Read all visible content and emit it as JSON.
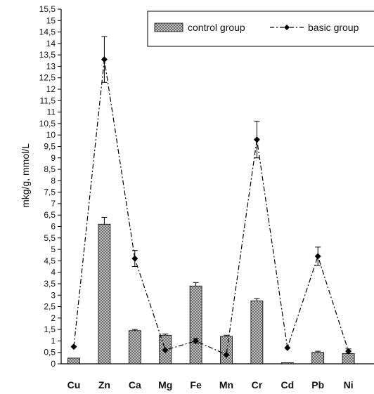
{
  "chart_data": {
    "type": "bar",
    "ylabel": "mkg/g, mmol/L",
    "xlabel": "",
    "ylim": [
      0,
      15.5
    ],
    "ytick_step": 0.5,
    "categories": [
      "Cu",
      "Zn",
      "Ca",
      "Mg",
      "Fe",
      "Mn",
      "Cr",
      "Cd",
      "Pb",
      "Ni"
    ],
    "series": [
      {
        "name": "control group",
        "kind": "bar",
        "values": [
          0.25,
          6.1,
          1.45,
          1.25,
          3.4,
          1.2,
          2.75,
          0.05,
          0.5,
          0.45
        ],
        "errors": [
          0,
          0.3,
          0.05,
          0.05,
          0.15,
          0.05,
          0.1,
          0,
          0.05,
          0.1
        ]
      },
      {
        "name": "basic group",
        "kind": "line",
        "values": [
          0.75,
          13.3,
          4.6,
          0.6,
          1.0,
          0.4,
          9.8,
          0.7,
          4.7,
          0.55
        ],
        "errors": [
          0,
          1.0,
          0.35,
          0,
          0.1,
          0,
          0.8,
          0,
          0.4,
          0.1
        ]
      }
    ],
    "legend_position": "top-right",
    "grid": false
  }
}
